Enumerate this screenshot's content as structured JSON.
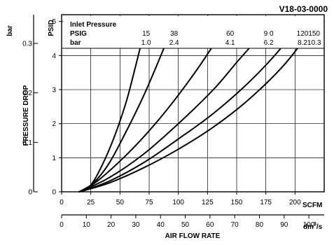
{
  "chart_data": {
    "type": "line",
    "title": "V18-03-0000",
    "ylabel": "PRESSURE DROP",
    "xlabel": "AIR FLOW RATE",
    "grid": true,
    "x_axis_primary": {
      "unit": "SCFM",
      "range": [
        0,
        225
      ],
      "ticks": [
        "0",
        "25",
        "50",
        "75",
        "100",
        "125",
        "150",
        "175",
        "200"
      ]
    },
    "x_axis_secondary": {
      "unit_base": "dm",
      "unit_exp": "3",
      "unit_tail": "/s",
      "range": [
        0,
        106.2
      ],
      "ticks": [
        "0",
        "10",
        "20",
        "30",
        "40",
        "50",
        "60",
        "70",
        "80",
        "90",
        "100"
      ]
    },
    "y_axis_primary": {
      "unit": "PSID",
      "range": [
        0,
        5.2
      ],
      "ticks": [
        "0",
        "1",
        "2",
        "3",
        "4",
        "5"
      ]
    },
    "y_axis_secondary": {
      "unit": "bar",
      "range": [
        0,
        0.358
      ],
      "ticks": [
        "0",
        "0.1",
        "0.2",
        "0.3"
      ]
    },
    "legend": {
      "header": "Inlet Pressure",
      "psig_label": "PSIG",
      "bar_label": "bar",
      "psig_values": [
        "15",
        "38",
        "60",
        "9 0",
        "120",
        "150"
      ],
      "bar_values": [
        "1.0",
        "2.4",
        "4.1",
        "6.2",
        "8.2",
        "10.3"
      ]
    },
    "series": [
      {
        "x": [
          15,
          25,
          35,
          45,
          55,
          62,
          70
        ],
        "y": [
          0,
          0.2,
          0.8,
          1.6,
          2.6,
          3.5,
          4.6
        ]
      },
      {
        "x": [
          15,
          25,
          40,
          55,
          70,
          82,
          94
        ],
        "y": [
          0,
          0.18,
          0.8,
          1.75,
          2.8,
          3.75,
          4.75
        ]
      },
      {
        "x": [
          15,
          30,
          50,
          70,
          90,
          110,
          128,
          142
        ],
        "y": [
          0,
          0.3,
          0.9,
          1.6,
          2.4,
          3.3,
          4.2,
          5.0
        ]
      },
      {
        "x": [
          15,
          40,
          70,
          100,
          130,
          150,
          165,
          175
        ],
        "y": [
          0,
          0.4,
          1.1,
          2.0,
          3.0,
          3.8,
          4.4,
          4.95
        ]
      },
      {
        "x": [
          15,
          40,
          70,
          100,
          130,
          160,
          185,
          204
        ],
        "y": [
          0,
          0.3,
          0.85,
          1.55,
          2.3,
          3.2,
          4.1,
          4.95
        ]
      },
      {
        "x": [
          15,
          40,
          70,
          100,
          130,
          160,
          190,
          214
        ],
        "y": [
          0,
          0.25,
          0.7,
          1.25,
          1.9,
          2.7,
          3.7,
          4.75
        ]
      }
    ]
  }
}
